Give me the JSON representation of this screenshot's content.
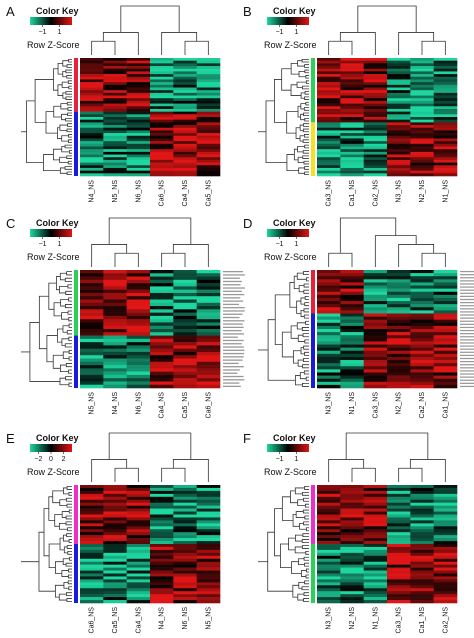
{
  "color_scale": {
    "low": "#1dd6a0",
    "mid": "#000000",
    "high": "#e01515"
  },
  "chart_data": [
    {
      "type": "heatmap",
      "panel": "A",
      "legend_title": "Color Key",
      "legend_sublabel": "Row Z-Score",
      "legend_ticks": [
        "−1",
        "1"
      ],
      "columns": [
        "N4_NS",
        "N5_NS",
        "N6_NS",
        "Ca6_NS",
        "Ca4_NS",
        "Ca5_NS"
      ],
      "row_groups": [
        {
          "color": "#e8203a",
          "rows": 20
        },
        {
          "color": "#1a1adf",
          "rows": 24
        }
      ],
      "col_groups": [
        {
          "count": 3,
          "group_dir": 1
        },
        {
          "count": 3,
          "group_dir": -1
        }
      ],
      "row_gene_labels": false
    },
    {
      "type": "heatmap",
      "panel": "B",
      "legend_title": "Color Key",
      "legend_sublabel": "Row Z-Score",
      "legend_ticks": [
        "−1",
        "1"
      ],
      "columns": [
        "Ca3_NS",
        "Ca1_NS",
        "Ca2_NS",
        "N3_NS",
        "N2_NS",
        "N1_NS"
      ],
      "row_groups": [
        {
          "color": "#27d257",
          "rows": 24
        },
        {
          "color": "#f4e21e",
          "rows": 20
        }
      ],
      "col_groups": [
        {
          "count": 3,
          "group_dir": 1
        },
        {
          "count": 3,
          "group_dir": -1
        }
      ],
      "row_gene_labels": false
    },
    {
      "type": "heatmap",
      "panel": "C",
      "legend_title": "Color Key",
      "legend_sublabel": "Row Z-Score",
      "legend_ticks": [
        "−1",
        "1"
      ],
      "columns": [
        "N5_NS",
        "N4_NS",
        "N6_NS",
        "Ca4_NS",
        "Ca5_NS",
        "Ca6_NS"
      ],
      "row_groups": [
        {
          "color": "#27d257",
          "rows": 20
        },
        {
          "color": "#1a1adf",
          "rows": 16
        }
      ],
      "col_groups": [
        {
          "count": 3,
          "group_dir": -1
        },
        {
          "count": 3,
          "group_dir": 1
        }
      ],
      "row_gene_labels": true
    },
    {
      "type": "heatmap",
      "panel": "D",
      "legend_title": "Color Key",
      "legend_sublabel": "Row Z-Score",
      "legend_ticks": [
        "−1",
        "1"
      ],
      "columns": [
        "N3_NS",
        "N1_NS",
        "Ca3_NS",
        "N2_NS",
        "Ca2_NS",
        "Ca1_NS"
      ],
      "row_groups": [
        {
          "color": "#e8203a",
          "rows": 14
        },
        {
          "color": "#1a1adf",
          "rows": 24
        }
      ],
      "col_groups": [
        {
          "count": 2,
          "group_dir": 1
        },
        {
          "count": 4,
          "group_dir": -1
        }
      ],
      "row_gene_labels": true
    },
    {
      "type": "heatmap",
      "panel": "E",
      "legend_title": "Color Key",
      "legend_sublabel": "Row Z-Score",
      "legend_ticks": [
        "−2",
        "0",
        "2"
      ],
      "columns": [
        "Ca6_NS",
        "Ca5_NS",
        "Ca4_NS",
        "N4_NS",
        "N6_NS",
        "N5_NS"
      ],
      "row_groups": [
        {
          "color": "#ee2fc7",
          "rows": 20
        },
        {
          "color": "#1a1adf",
          "rows": 20
        }
      ],
      "col_groups": [
        {
          "count": 3,
          "group_dir": -1
        },
        {
          "count": 3,
          "group_dir": 1
        }
      ],
      "row_gene_labels": false
    },
    {
      "type": "heatmap",
      "panel": "F",
      "legend_title": "Color Key",
      "legend_sublabel": "Row Z-Score",
      "legend_ticks": [
        "−1",
        "1"
      ],
      "columns": [
        "N3_NS",
        "N2_NS",
        "N1_NS",
        "Ca3_NS",
        "Ca1_NS",
        "Ca2_NS"
      ],
      "row_groups": [
        {
          "color": "#ee2fc7",
          "rows": 20
        },
        {
          "color": "#27d257",
          "rows": 20
        }
      ],
      "col_groups": [
        {
          "count": 3,
          "group_dir": -1
        },
        {
          "count": 3,
          "group_dir": 1
        }
      ],
      "row_gene_labels": false
    }
  ]
}
